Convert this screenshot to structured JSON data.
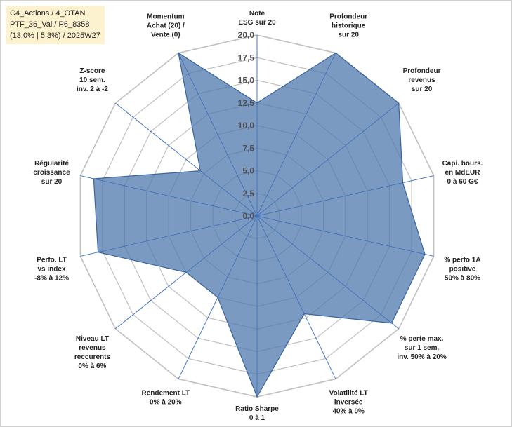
{
  "info": {
    "line1": "C4_Actions / 4_OTAN",
    "line2": "PTF_36_Val / P6_8358",
    "line3": "(13,0% | 5,3%) / 2025W27"
  },
  "colors": {
    "fill": "#4f78ac",
    "stroke": "#3a64a0",
    "grid": "#c0c0c0",
    "spoke": "#3a70c8"
  },
  "chart_data": {
    "type": "radar",
    "title": "",
    "rlim": [
      0,
      20
    ],
    "ticks": [
      "0,0",
      "2,5",
      "5,0",
      "7,5",
      "10,0",
      "12,5",
      "15,0",
      "17,5",
      "20,0"
    ],
    "grid": true,
    "categories": [
      [
        "Note",
        "ESG sur 20"
      ],
      [
        "Profondeur",
        "historique",
        "sur 20"
      ],
      [
        "Profondeur",
        "revenus",
        "sur 20"
      ],
      [
        "Capi. bours.",
        "en MdEUR",
        "0 à 60 G€"
      ],
      [
        "% perfo 1A",
        "positive",
        "50% à 80%"
      ],
      [
        "% perte max.",
        "sur 1 sem.",
        "inv. 50% à 20%"
      ],
      [
        "Volatilité LT",
        "inversée",
        "40% à 0%"
      ],
      [
        "Ratio Sharpe",
        "0 à 1"
      ],
      [
        "Rendement LT",
        "0% à 20%"
      ],
      [
        "Niveau LT",
        "revenus",
        "reccurents",
        "0% à 6%"
      ],
      [
        "Perfo. LT",
        "vs index",
        "-8% à 12%"
      ],
      [
        "Régularité",
        "croissance",
        "sur 20"
      ],
      [
        "Z-score",
        "10 sem.",
        "inv. 2 à -2"
      ],
      [
        "Momentum",
        "Achat (20) /",
        "Vente (0)"
      ]
    ],
    "series": [
      {
        "values": [
          12.5,
          20,
          20,
          16.5,
          19,
          19,
          12,
          20,
          10,
          10,
          18,
          18.5,
          8,
          20
        ]
      }
    ]
  }
}
